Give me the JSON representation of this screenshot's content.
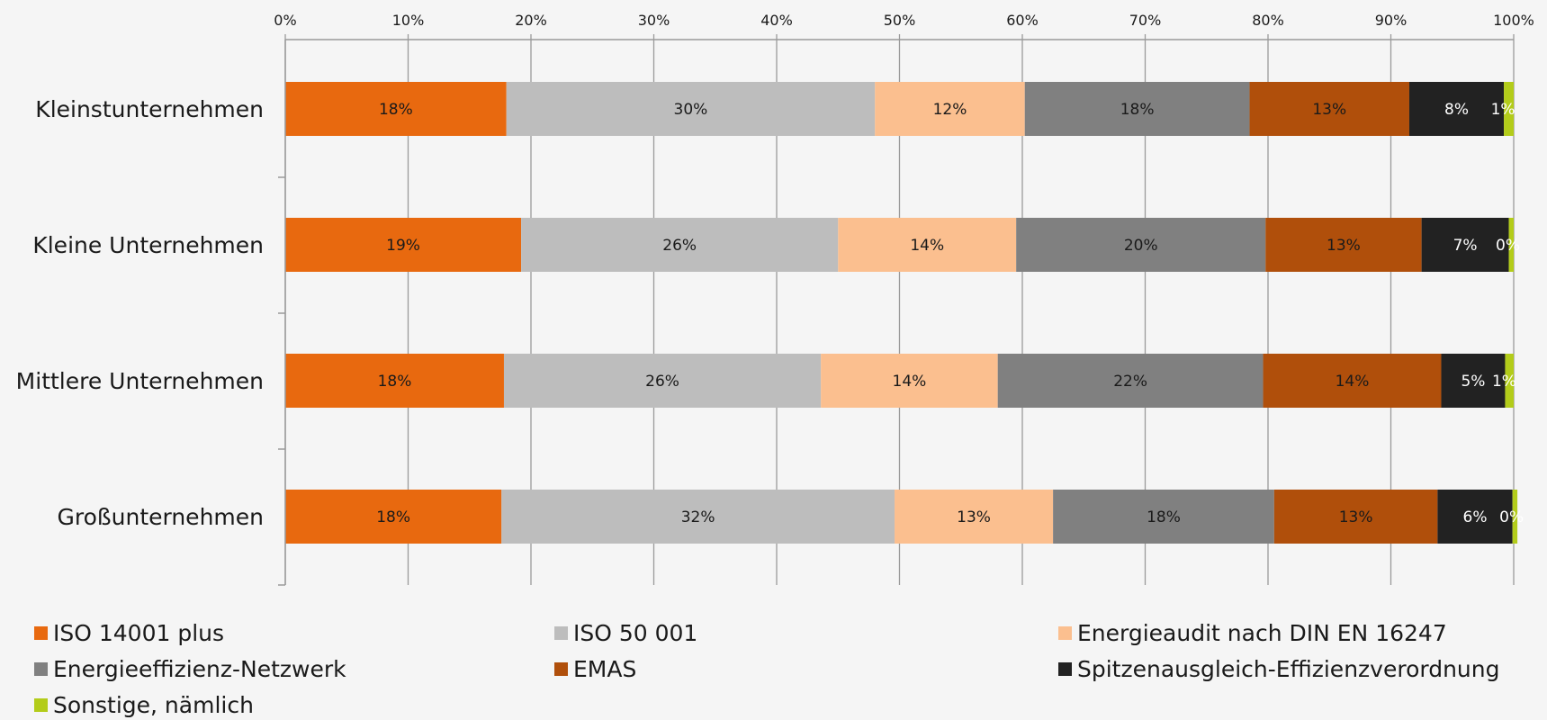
{
  "chart_data": {
    "type": "bar",
    "orientation": "horizontal",
    "stacked": "percent",
    "categories": [
      "Kleinstunternehmen",
      "Kleine Unternehmen",
      "Mittlere Unternehmen",
      "Großunternehmen"
    ],
    "x_ticks": [
      "0%",
      "10%",
      "20%",
      "30%",
      "40%",
      "50%",
      "60%",
      "70%",
      "80%",
      "90%",
      "100%"
    ],
    "xlim": [
      0,
      100
    ],
    "grid": true,
    "legend_position": "bottom",
    "series": [
      {
        "name": "ISO 14001 plus",
        "color": "#e8690f",
        "values": [
          18,
          19.2,
          17.8,
          17.6
        ],
        "labels": [
          "18%",
          "19%",
          "18%",
          "18%"
        ]
      },
      {
        "name": "ISO 50 001",
        "color": "#bdbdbd",
        "values": [
          30,
          25.8,
          25.8,
          32
        ],
        "labels": [
          "30%",
          "26%",
          "26%",
          "32%"
        ]
      },
      {
        "name": "Energieaudit nach DIN EN 16247",
        "color": "#fbbf8f",
        "values": [
          12.2,
          14.5,
          14.4,
          12.9
        ],
        "labels": [
          "12%",
          "14%",
          "14%",
          "13%"
        ]
      },
      {
        "name": "Energieeffizienz-Netzwerk",
        "color": "#808080",
        "values": [
          18.3,
          20.3,
          21.6,
          18
        ],
        "labels": [
          "18%",
          "20%",
          "22%",
          "18%"
        ]
      },
      {
        "name": "EMAS",
        "color": "#b04f0b",
        "values": [
          13,
          12.7,
          14.5,
          13.3
        ],
        "labels": [
          "13%",
          "13%",
          "14%",
          "13%"
        ]
      },
      {
        "name": "Spitzenausgleich-Effizienzverordnung",
        "color": "#222222",
        "values": [
          7.7,
          7.1,
          5.2,
          6.1
        ],
        "labels": [
          "8%",
          "7%",
          "5%",
          "6%"
        ]
      },
      {
        "name": "Sonstige, nämlich",
        "color": "#b3cc1a",
        "values": [
          0.8,
          0.4,
          0.7,
          0.4
        ],
        "labels": [
          "1%",
          "0%",
          "1%",
          "0%"
        ]
      }
    ]
  }
}
